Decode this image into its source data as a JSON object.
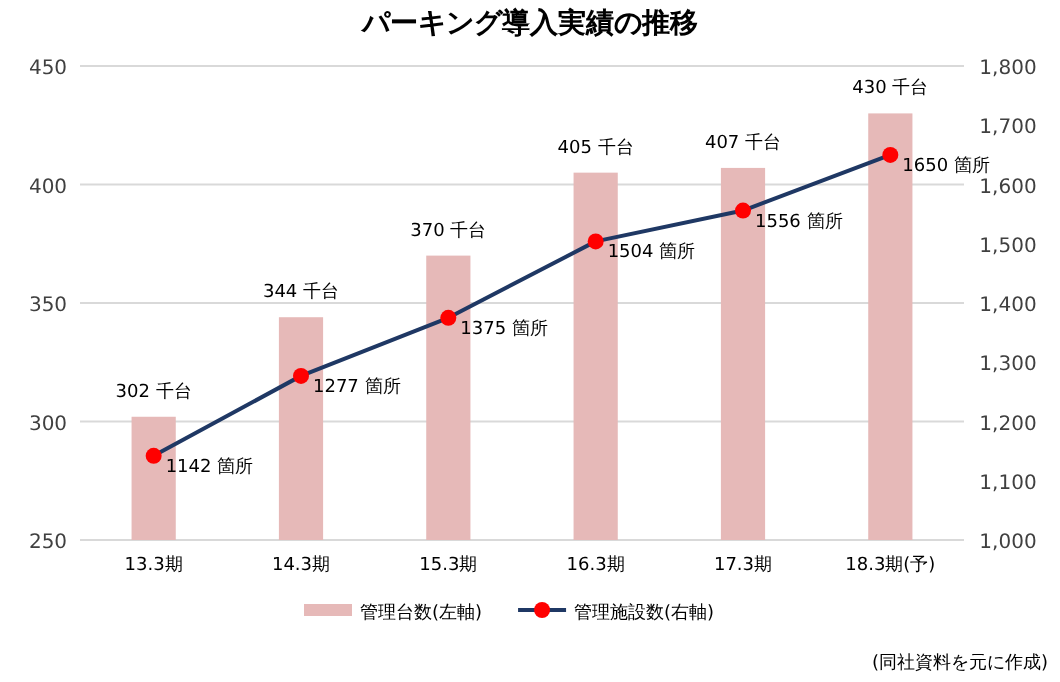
{
  "chart_data": {
    "type": "bar",
    "title": "パーキング導入実績の推移",
    "categories": [
      "13.3期",
      "14.3期",
      "15.3期",
      "16.3期",
      "17.3期",
      "18.3期(予)"
    ],
    "series": [
      {
        "name": "管理台数(左軸)",
        "color": "#e6b9b8",
        "values": [
          302,
          344,
          370,
          405,
          407,
          430
        ],
        "value_labels": [
          "302 千台",
          "344 千台",
          "370 千台",
          "405 千台",
          "407 千台",
          "430 千台"
        ]
      },
      {
        "name": "管理施設数(右軸)",
        "type": "line",
        "axis": "y2",
        "color": "#1f3864",
        "colors": [
          "#ff0000",
          "#ff0000",
          "#ff0000",
          "#ff0000",
          "#ff0000",
          "#ff0000"
        ],
        "values": [
          1142,
          1277,
          1375,
          1504,
          1556,
          1650
        ],
        "value_labels": [
          "1142 箇所",
          "1277 箇所",
          "1375 箇所",
          "1504 箇所",
          "1556 箇所",
          "1650 箇所"
        ]
      }
    ],
    "ylim": [
      250,
      450
    ],
    "yticks": [
      250,
      300,
      350,
      400,
      450
    ],
    "y2lim": [
      1000,
      1800
    ],
    "y2ticks": [
      {
        "value": 1000,
        "label": "1,000"
      },
      {
        "value": 1100,
        "label": "1,100"
      },
      {
        "value": 1200,
        "label": "1,200"
      },
      {
        "value": 1300,
        "label": "1,300"
      },
      {
        "value": 1400,
        "label": "1,400"
      },
      {
        "value": 1500,
        "label": "1,500"
      },
      {
        "value": 1600,
        "label": "1,600"
      },
      {
        "value": 1700,
        "label": "1,700"
      },
      {
        "value": 1800,
        "label": "1,800"
      }
    ],
    "grid": "y",
    "legend": "bottom",
    "marker": "circle",
    "line_style": "solid",
    "annotations": [
      "(同社資料を元に作成)"
    ]
  }
}
